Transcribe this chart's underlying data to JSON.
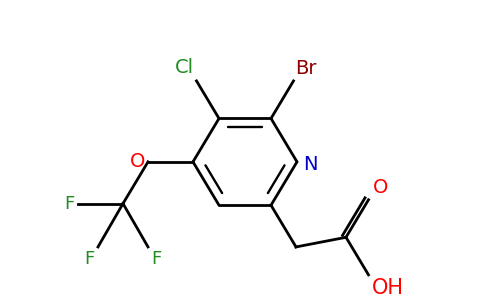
{
  "background_color": "#ffffff",
  "figsize": [
    4.84,
    3.0
  ],
  "dpi": 100,
  "bond_color": "#000000",
  "bond_lw": 2.0,
  "label_Br": {
    "text": "Br",
    "color": "#8b0000",
    "fontsize": 14
  },
  "label_Cl": {
    "text": "Cl",
    "color": "#228b22",
    "fontsize": 14
  },
  "label_N": {
    "text": "N",
    "color": "#0000cc",
    "fontsize": 14
  },
  "label_O": {
    "text": "O",
    "color": "#ff0000",
    "fontsize": 14
  },
  "label_F": {
    "text": "F",
    "color": "#228b22",
    "fontsize": 13
  },
  "label_O2": {
    "text": "O",
    "color": "#ff0000",
    "fontsize": 14
  },
  "label_OH": {
    "text": "OH",
    "color": "#ff0000",
    "fontsize": 15
  }
}
